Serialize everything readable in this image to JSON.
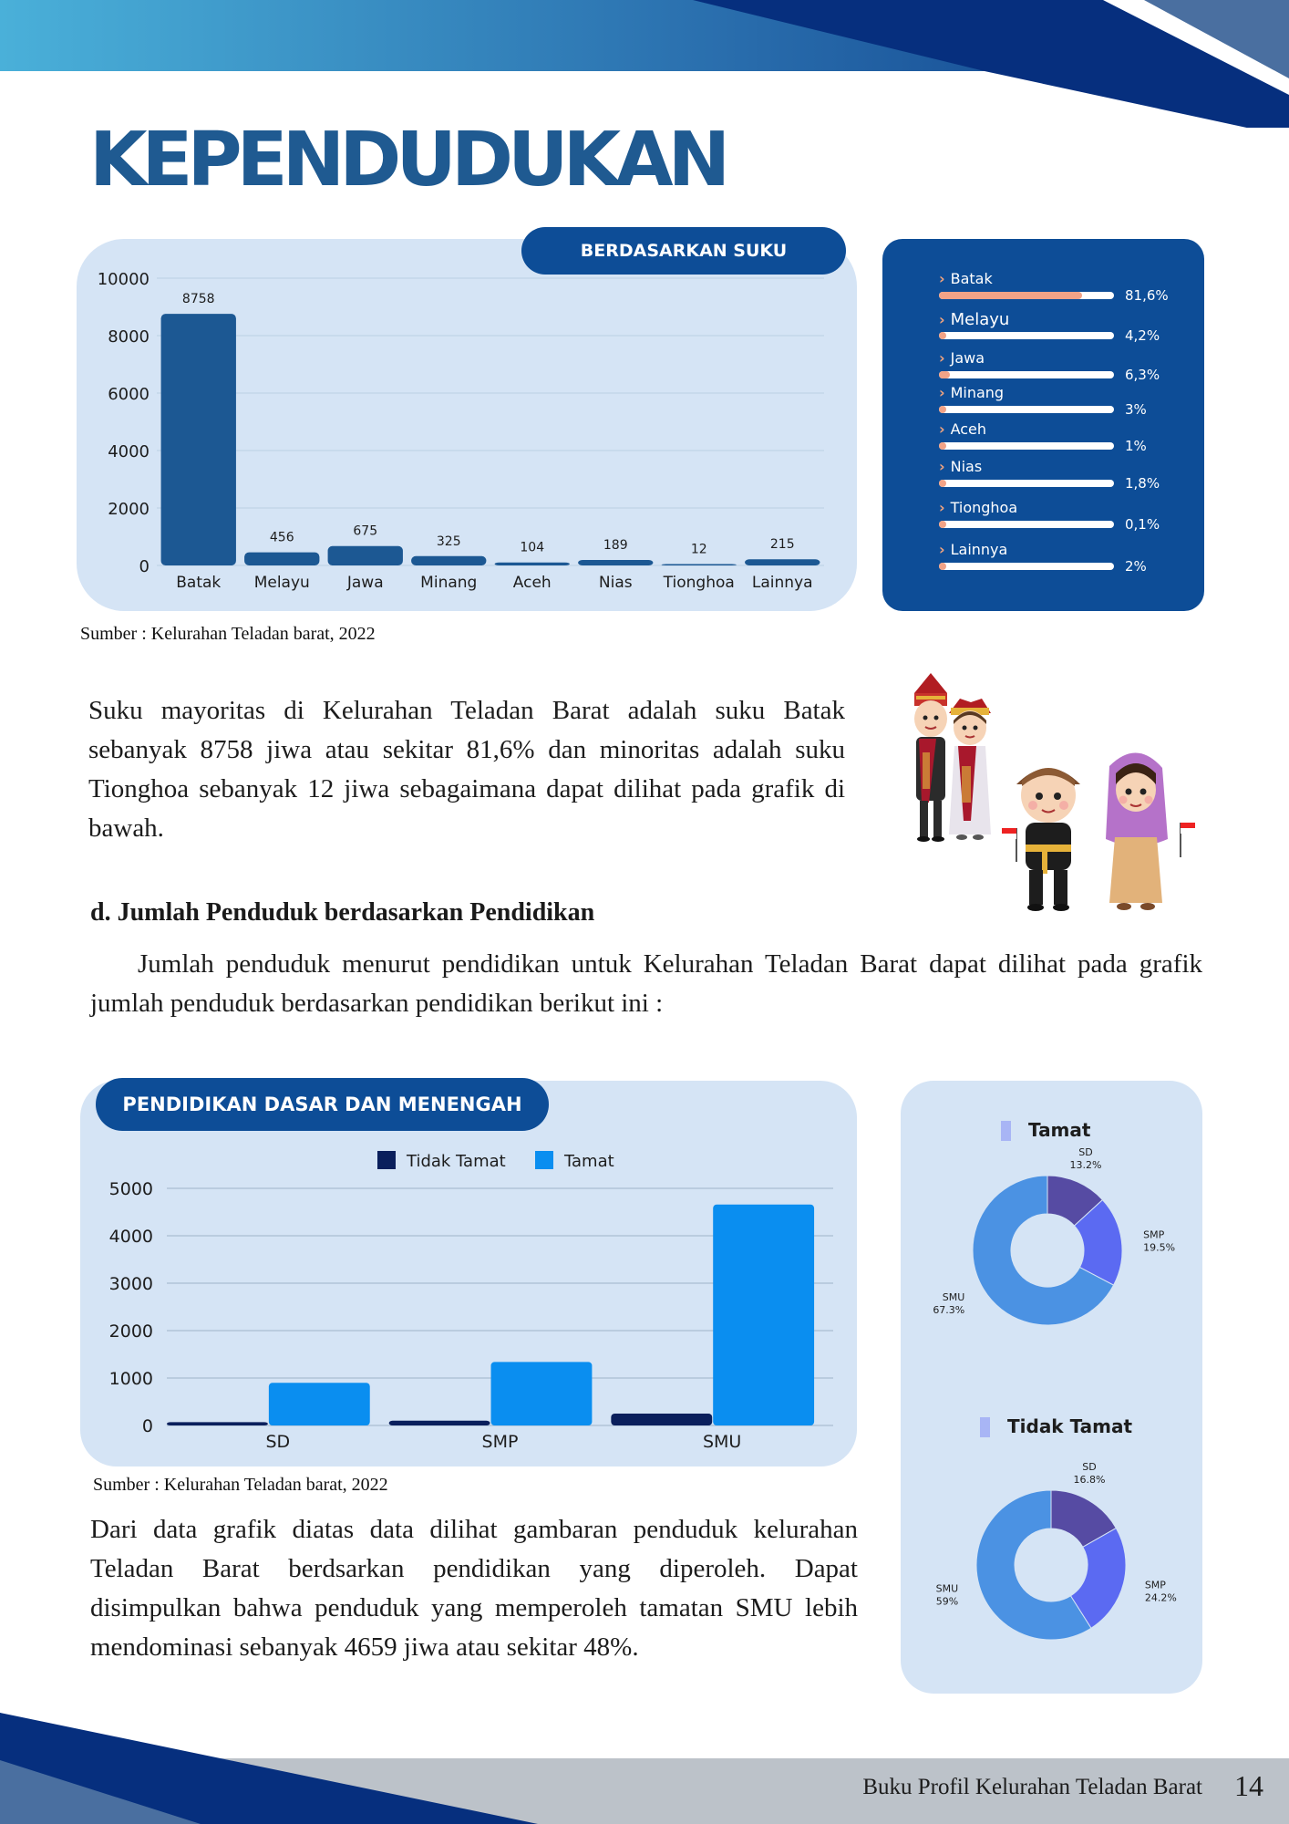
{
  "page": {
    "title": "KEPENDUDUKAN",
    "footer_text": "Buku Profil Kelurahan Teladan Barat",
    "page_number": "14"
  },
  "suku_chart": {
    "header": "BERDASARKAN SUKU",
    "source": "Sumber : Kelurahan Teladan barat, 2022"
  },
  "suku_list": [
    {
      "label": "Batak",
      "percent": "81,6%",
      "value": 81.6
    },
    {
      "label": "Melayu",
      "percent": "4,2%",
      "value": 4.2
    },
    {
      "label": "Jawa",
      "percent": "6,3%",
      "value": 6.3
    },
    {
      "label": "Minang",
      "percent": "3%",
      "value": 3
    },
    {
      "label": "Aceh",
      "percent": "1%",
      "value": 1
    },
    {
      "label": "Nias",
      "percent": "1,8%",
      "value": 1.8
    },
    {
      "label": "Tionghoa",
      "percent": "0,1%",
      "value": 0.1
    },
    {
      "label": "Lainnya",
      "percent": "2%",
      "value": 2
    }
  ],
  "text": {
    "paragraph1": "Suku  mayoritas di Kelurahan Teladan Barat adalah suku Batak sebanyak 8758 jiwa atau sekitar 81,6% dan minoritas adalah suku Tionghoa sebanyak 12 jiwa sebagaimana dapat dilihat pada grafik di bawah.",
    "section_heading": "d. Jumlah Penduduk berdasarkan Pendidikan",
    "paragraph2": "Jumlah penduduk menurut pendidikan untuk Kelurahan Teladan Barat dapat dilihat pada grafik jumlah penduduk berdasarkan pendidikan berikut ini :",
    "paragraph3": "Dari data grafik diatas data dilihat gambaran penduduk kelurahan Teladan Barat berdsarkan pendidikan yang diperoleh. Dapat disimpulkan bahwa penduduk yang memperoleh tamatan SMU lebih mendominasi sebanyak 4659 jiwa atau sekitar 48%."
  },
  "pendidikan_chart": {
    "header": "PENDIDIKAN DASAR DAN MENENGAH",
    "source": "Sumber : Kelurahan Teladan barat, 2022"
  },
  "illustration": {
    "icon": "traditional-costume-children-illustration"
  },
  "colors": {
    "brand_blue": "#0d4d97",
    "title_blue": "#1f5a91",
    "panel_light": "#d5e4f5",
    "bar_suku": "#1c5893",
    "bar_tidak_tamat": "#0a1f5c",
    "bar_tamat": "#0a8ef0",
    "accent_orange": "#f2a387",
    "donut_sd": "#564ba3",
    "donut_smp": "#5b6af2",
    "donut_smu": "#4b92e3"
  },
  "chart_data": [
    {
      "type": "bar",
      "title": "BERDASARKAN SUKU",
      "categories": [
        "Batak",
        "Melayu",
        "Jawa",
        "Minang",
        "Aceh",
        "Nias",
        "Tionghoa",
        "Lainnya"
      ],
      "values": [
        8758,
        456,
        675,
        325,
        104,
        189,
        12,
        215
      ],
      "ylim": [
        0,
        10000
      ],
      "yticks": [
        0,
        2000,
        4000,
        6000,
        8000,
        10000
      ],
      "grid": true
    },
    {
      "type": "bar",
      "title": "PENDIDIKAN DASAR DAN MENENGAH",
      "categories": [
        "SD",
        "SMP",
        "SMU"
      ],
      "series": [
        {
          "name": "Tidak Tamat",
          "values": [
            70,
            100,
            250
          ]
        },
        {
          "name": "Tamat",
          "values": [
            900,
            1340,
            4659
          ]
        }
      ],
      "ylim": [
        0,
        5000
      ],
      "yticks": [
        0,
        1000,
        2000,
        3000,
        4000,
        5000
      ],
      "legend": "top",
      "grid": true
    },
    {
      "type": "pie",
      "title": "Tamat",
      "categories": [
        "SD",
        "SMP",
        "SMU"
      ],
      "values": [
        13.2,
        19.5,
        67.3
      ],
      "labels": [
        "13.2%",
        "19.5%",
        "67.3%"
      ]
    },
    {
      "type": "pie",
      "title": "Tidak Tamat",
      "categories": [
        "SD",
        "SMP",
        "SMU"
      ],
      "values": [
        16.8,
        24.2,
        59
      ],
      "labels": [
        "16.8%",
        "24.2%",
        "59%"
      ]
    }
  ]
}
